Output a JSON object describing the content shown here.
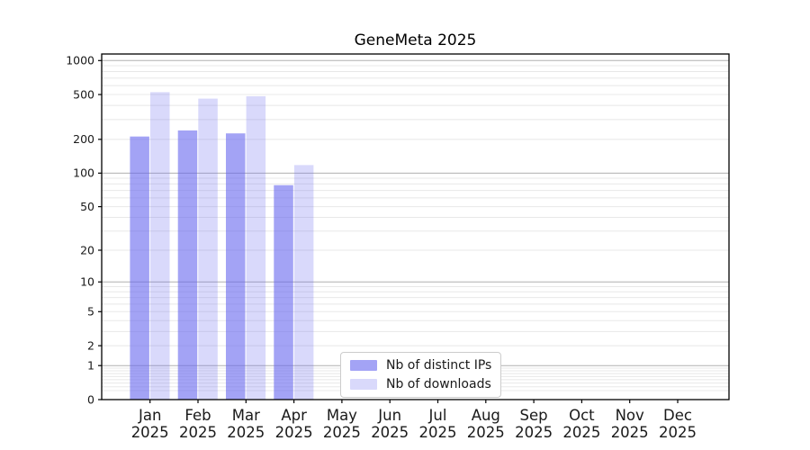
{
  "chart_data": {
    "type": "bar",
    "title": "GeneMeta 2025",
    "scale": "symlog",
    "ylim": [
      0,
      1100
    ],
    "yticks": [
      1000,
      500,
      200,
      100,
      50,
      20,
      10,
      5,
      2,
      1,
      0
    ],
    "major_gridlines": [
      1,
      10,
      100,
      1000
    ],
    "grid": "on",
    "categories": [
      "Jan",
      "Feb",
      "Mar",
      "Apr",
      "May",
      "Jun",
      "Jul",
      "Aug",
      "Sep",
      "Oct",
      "Nov",
      "Dec"
    ],
    "year": "2025",
    "series": [
      {
        "name": "Nb of distinct IPs",
        "color": "rgba(102,102,238,0.6)",
        "values": [
          212,
          240,
          226,
          78,
          0,
          0,
          0,
          0,
          0,
          0,
          0,
          0
        ]
      },
      {
        "name": "Nb of downloads",
        "color": "rgba(102,102,238,0.25)",
        "values": [
          525,
          460,
          483,
          118,
          0,
          0,
          0,
          0,
          0,
          0,
          0,
          0
        ]
      }
    ],
    "legend_position": "lower center-left"
  },
  "colors": {
    "axis": "#000000",
    "text": "#1a1a1a",
    "major_grid": "#b0b0b0",
    "minor_grid": "#e8e8e8",
    "background": "#ffffff",
    "bar_base": "#6666ee"
  }
}
